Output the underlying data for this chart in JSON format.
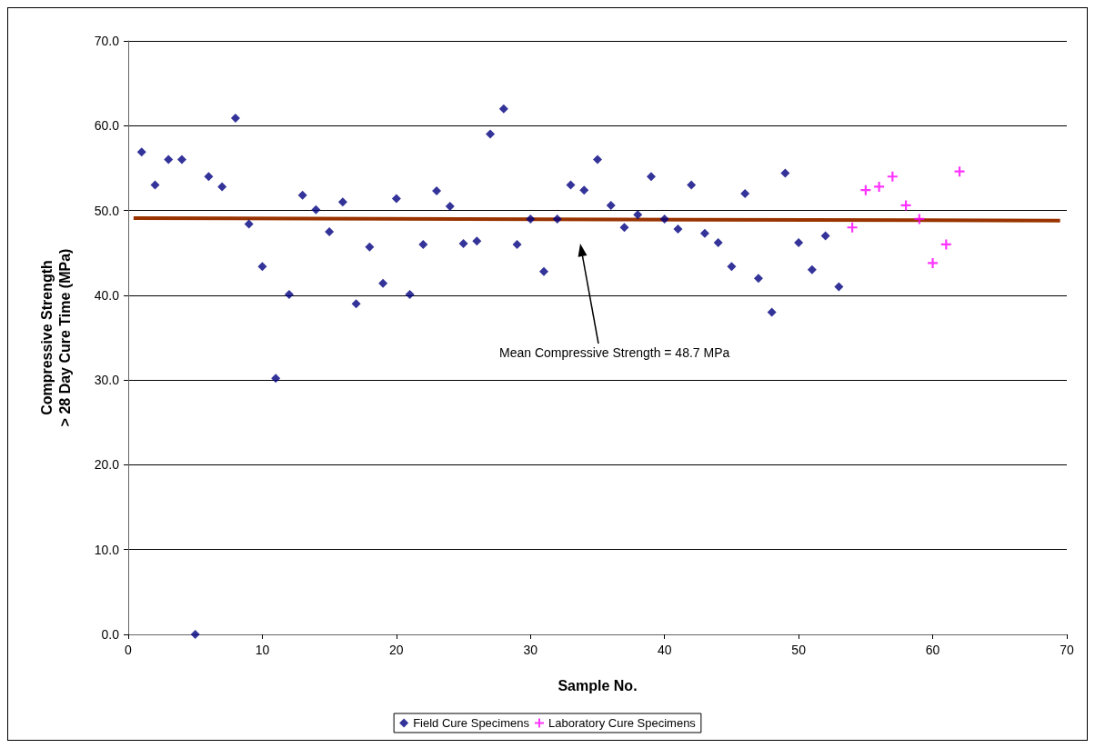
{
  "chart_data": {
    "type": "scatter",
    "xlabel": "Sample No.",
    "ylabel": "Compressive Strength\n> 28 Day Cure Time (MPa)",
    "xlim": [
      0,
      70
    ],
    "xticks": [
      0,
      10,
      20,
      30,
      40,
      50,
      60,
      70
    ],
    "ylim": [
      0,
      70
    ],
    "yticks": [
      {
        "value": 0,
        "label": "0.0"
      },
      {
        "value": 10,
        "label": "10.0"
      },
      {
        "value": 20,
        "label": "20.0"
      },
      {
        "value": 30,
        "label": "30.0"
      },
      {
        "value": 40,
        "label": "40.0"
      },
      {
        "value": 50,
        "label": "50.0"
      },
      {
        "value": 60,
        "label": "60.0"
      },
      {
        "value": 70,
        "label": "70.0"
      }
    ],
    "grid": "y",
    "legend": "bottom",
    "series": [
      {
        "name": "Field Cure Specimens",
        "color": "#000080",
        "marker": "diamond",
        "x": [
          1,
          2,
          3,
          4,
          5,
          6,
          7,
          8,
          9,
          10,
          11,
          12,
          13,
          14,
          15,
          16,
          17,
          18,
          19,
          20,
          21,
          22,
          23,
          24,
          25,
          26,
          27,
          28,
          29,
          30,
          31,
          32,
          33,
          34,
          35,
          36,
          37,
          38,
          39,
          40,
          41,
          42,
          43,
          44,
          45,
          46,
          47,
          48,
          49,
          50,
          51,
          52,
          53
        ],
        "values": [
          56.9,
          53.0,
          56.0,
          56.0,
          0.0,
          54.0,
          52.8,
          60.9,
          48.4,
          43.4,
          30.2,
          40.1,
          51.8,
          50.1,
          47.5,
          51.0,
          39.0,
          45.7,
          41.4,
          51.4,
          40.1,
          46.0,
          52.3,
          50.5,
          46.1,
          46.4,
          59.0,
          62.0,
          46.0,
          49.0,
          42.8,
          49.0,
          53.0,
          52.4,
          56.0,
          50.6,
          48.0,
          49.5,
          54.0,
          49.0,
          47.8,
          53.0,
          47.3,
          46.2,
          43.4,
          52.0,
          42.0,
          38.0,
          54.4,
          46.2,
          43.0,
          47.0,
          41.0
        ]
      },
      {
        "name": "Laboratory Cure Specimens",
        "color": "#ff00ff",
        "marker": "cross",
        "x": [
          54,
          55,
          56,
          57,
          58,
          59,
          60,
          61,
          62
        ],
        "values": [
          48.0,
          52.4,
          52.8,
          54.0,
          50.6,
          49.0,
          43.8,
          46.0,
          54.6
        ]
      },
      {
        "type": "line",
        "color": "#993300",
        "marker": "none",
        "x": [
          0.4,
          69.5
        ],
        "values": [
          49.1,
          48.8
        ]
      }
    ],
    "annotations": [
      "Mean Compressive Strength = 48.7 MPa"
    ]
  }
}
